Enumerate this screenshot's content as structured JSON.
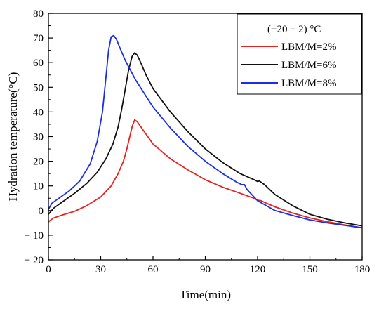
{
  "chart_data": {
    "type": "line",
    "title": "",
    "xlabel": "Time(min)",
    "ylabel": "Hydration temperature(°C)",
    "xlim": [
      0,
      180
    ],
    "ylim": [
      -20,
      80
    ],
    "xticks": [
      0,
      30,
      60,
      90,
      120,
      150,
      180
    ],
    "yticks": [
      -20,
      -10,
      0,
      10,
      20,
      30,
      40,
      50,
      60,
      70,
      80
    ],
    "grid": false,
    "legend_position": "top-right",
    "legend_title": "(−20 ± 2) °C",
    "series": [
      {
        "name": "LBM/M=2%",
        "color": "#e8231c",
        "x": [
          0,
          3,
          8,
          15,
          22,
          30,
          36,
          40,
          43,
          45,
          47,
          48,
          49.5,
          51,
          53,
          56,
          60,
          70,
          80,
          90,
          100,
          110,
          118,
          120,
          122,
          125,
          130,
          140,
          150,
          160,
          170,
          180
        ],
        "y": [
          -4.5,
          -3,
          -1.8,
          -0.3,
          2,
          5.5,
          10,
          15,
          20,
          25,
          31,
          34,
          36.8,
          36,
          34,
          31,
          27,
          21,
          16.5,
          12.5,
          9.5,
          7,
          5,
          4.2,
          4,
          3,
          1.5,
          -1,
          -3,
          -4.5,
          -5.8,
          -7
        ]
      },
      {
        "name": "LBM/M=6%",
        "color": "#111111",
        "x": [
          0,
          3,
          8,
          15,
          22,
          28,
          33,
          37,
          40,
          42,
          44,
          46,
          48,
          49.5,
          51,
          53,
          56,
          60,
          70,
          80,
          90,
          100,
          110,
          118,
          120,
          121,
          124,
          130,
          140,
          150,
          160,
          170,
          180
        ],
        "y": [
          -1.5,
          1,
          3.5,
          7,
          11,
          15.5,
          21,
          27,
          34,
          41,
          49,
          57,
          62.5,
          64,
          63,
          60,
          55,
          49.5,
          40,
          32,
          25,
          19.5,
          15,
          12.5,
          11.8,
          12,
          10.5,
          6.5,
          2,
          -1.5,
          -3.5,
          -5,
          -6.2
        ]
      },
      {
        "name": "LBM/M=8%",
        "color": "#1b2ee6",
        "x": [
          0,
          2,
          6,
          12,
          18,
          24,
          28,
          31,
          33,
          34.5,
          36,
          37.5,
          39,
          41,
          44,
          50,
          60,
          70,
          80,
          90,
          100,
          108,
          111,
          112.5,
          114,
          120,
          130,
          140,
          150,
          160,
          170,
          180
        ],
        "y": [
          0.5,
          3,
          5,
          8,
          12,
          19,
          28,
          40,
          54,
          65,
          70.5,
          71,
          69.5,
          66,
          61,
          53,
          42,
          33.5,
          26,
          20,
          15,
          11.5,
          10.5,
          10.5,
          8.5,
          4,
          0,
          -2,
          -3.8,
          -5,
          -6,
          -7
        ]
      }
    ]
  }
}
